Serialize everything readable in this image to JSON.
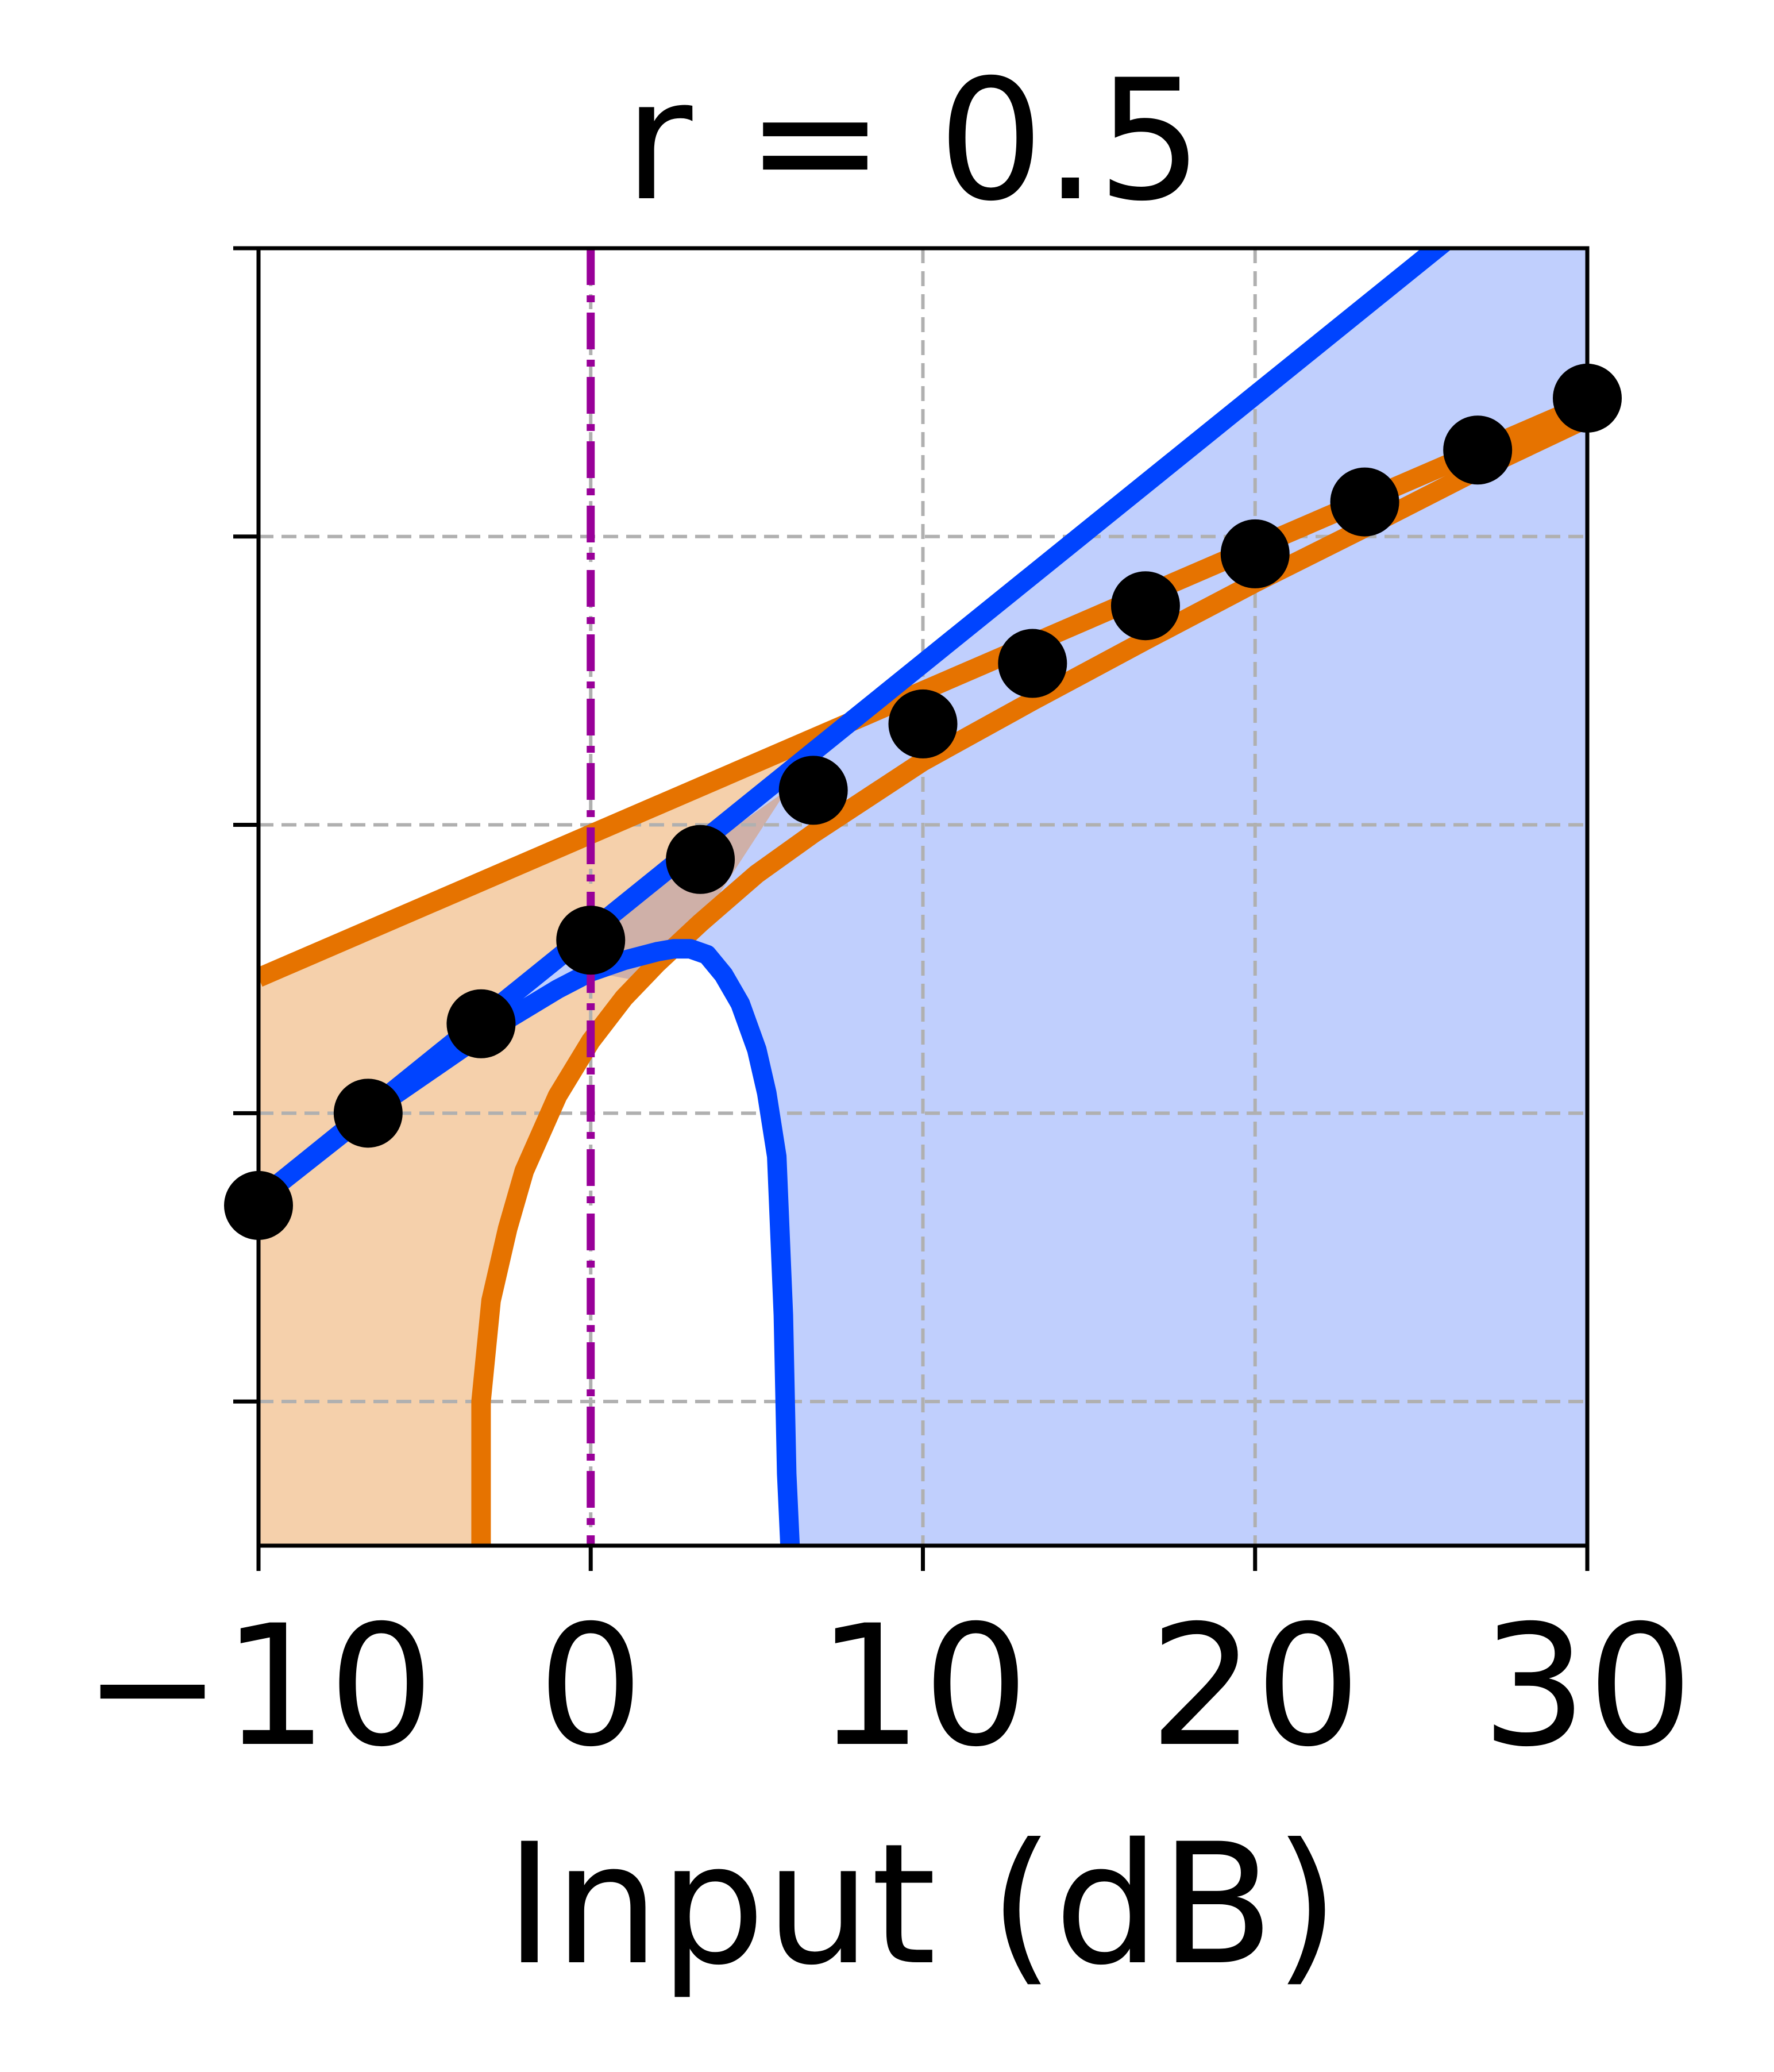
{
  "chart_data": {
    "type": "line",
    "title": "r = 0.5",
    "xlabel": "Input (dB)",
    "ylabel": "",
    "xlim": [
      -10,
      30
    ],
    "ylim": [
      0,
      4.5
    ],
    "x_ticks": [
      -10,
      0,
      10,
      20,
      30
    ],
    "x_tick_labels": [
      "−10",
      "0",
      "10",
      "20",
      "30"
    ],
    "y_ticks": [
      0.5,
      1.5,
      2.5,
      3.5
    ],
    "y_tick_labels": [
      "",
      "",
      "",
      ""
    ],
    "grid": true,
    "legend": "none",
    "vertical_marker": {
      "x": 0,
      "style": "dash-dot",
      "color": "#990099"
    },
    "series": [
      {
        "role": "blue-upper-bound",
        "style": "line",
        "color": "#0044ff",
        "x": [
          -10,
          33
        ],
        "y": [
          1.2,
          5.2
        ]
      },
      {
        "role": "blue-lower-bound",
        "style": "line",
        "color": "#0044ff",
        "x": [
          -10,
          -6.7,
          -3.3,
          -1,
          0,
          1,
          2,
          2.5,
          3,
          3.5,
          4,
          4.5,
          5,
          5.3,
          5.6,
          5.8,
          5.9,
          6.0
        ],
        "y": [
          1.2,
          1.5,
          1.77,
          1.93,
          1.99,
          2.03,
          2.06,
          2.07,
          2.07,
          2.05,
          1.98,
          1.88,
          1.72,
          1.57,
          1.35,
          0.8,
          0.25,
          0.0
        ]
      },
      {
        "role": "orange-upper-bound",
        "style": "line",
        "color": "#e67300",
        "x": [
          -10,
          30
        ],
        "y": [
          1.97,
          3.96
        ]
      },
      {
        "role": "orange-lower-bound",
        "style": "line",
        "color": "#e67300",
        "x": [
          -3.3,
          -3.3,
          -3.0,
          -2.5,
          -2.0,
          -1.0,
          0.0,
          1.0,
          2.0,
          3.3,
          5.0,
          6.7,
          10.0,
          13.3,
          16.7,
          20.0,
          23.3,
          26.7,
          30.0
        ],
        "y": [
          0.0,
          0.5,
          0.85,
          1.1,
          1.3,
          1.56,
          1.75,
          1.9,
          2.02,
          2.16,
          2.33,
          2.47,
          2.72,
          2.93,
          3.14,
          3.34,
          3.53,
          3.73,
          3.91
        ]
      },
      {
        "role": "black-markers",
        "style": "markers",
        "color": "#000000",
        "x": [
          -10,
          -6.7,
          -3.3,
          0,
          3.3,
          6.7,
          10,
          13.3,
          16.7,
          20,
          23.3,
          26.7,
          30
        ],
        "y": [
          1.18,
          1.5,
          1.81,
          2.1,
          2.38,
          2.62,
          2.85,
          3.06,
          3.26,
          3.44,
          3.62,
          3.8,
          3.98
        ]
      }
    ],
    "fills": [
      {
        "role": "orange-region",
        "color": "#f5d0ab"
      },
      {
        "role": "blue-region",
        "color": "#c0cffd"
      },
      {
        "role": "overlap-region",
        "color": "#cfb0a8"
      }
    ]
  }
}
